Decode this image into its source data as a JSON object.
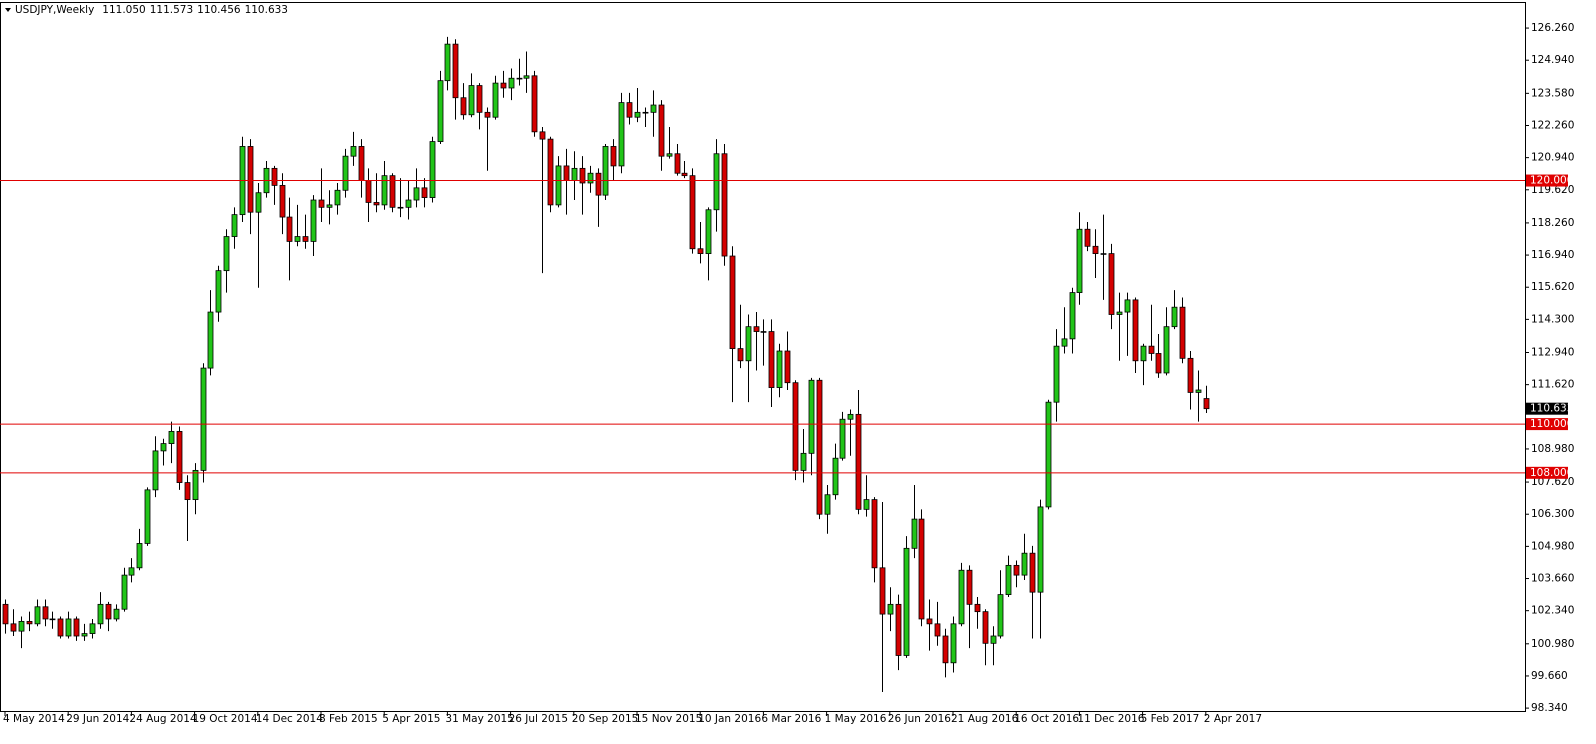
{
  "chart_data": {
    "type": "candlestick",
    "title": "USDJPY,Weekly",
    "header_values": [
      "111.050",
      "111.573",
      "110.456",
      "110.633"
    ],
    "up_color": "#21c418",
    "down_color": "#d40000",
    "categories": [
      "4 May 2014",
      null,
      null,
      null,
      null,
      null,
      null,
      null,
      "29 Jun 2014",
      null,
      null,
      null,
      null,
      null,
      null,
      null,
      "24 Aug 2014",
      null,
      null,
      null,
      null,
      null,
      null,
      null,
      "19 Oct 2014",
      null,
      null,
      null,
      null,
      null,
      null,
      null,
      "14 Dec 2014",
      null,
      null,
      null,
      null,
      null,
      null,
      null,
      "8 Feb 2015",
      null,
      null,
      null,
      null,
      null,
      null,
      null,
      "5 Apr 2015",
      null,
      null,
      null,
      null,
      null,
      null,
      null,
      "31 May 2015",
      null,
      null,
      null,
      null,
      null,
      null,
      null,
      "26 Jul 2015",
      null,
      null,
      null,
      null,
      null,
      null,
      null,
      "20 Sep 2015",
      null,
      null,
      null,
      null,
      null,
      null,
      null,
      "15 Nov 2015",
      null,
      null,
      null,
      null,
      null,
      null,
      null,
      "10 Jan 2016",
      null,
      null,
      null,
      null,
      null,
      null,
      null,
      "6 Mar 2016",
      null,
      null,
      null,
      null,
      null,
      null,
      null,
      "1 May 2016",
      null,
      null,
      null,
      null,
      null,
      null,
      null,
      "26 Jun 2016",
      null,
      null,
      null,
      null,
      null,
      null,
      null,
      "21 Aug 2016",
      null,
      null,
      null,
      null,
      null,
      null,
      null,
      "16 Oct 2016",
      null,
      null,
      null,
      null,
      null,
      null,
      null,
      "11 Dec 2016",
      null,
      null,
      null,
      null,
      null,
      null,
      null,
      "5 Feb 2017",
      null,
      null,
      null,
      null,
      null,
      null,
      null,
      "2 Apr 2017"
    ],
    "open": [
      102.6,
      101.8,
      101.5,
      101.9,
      101.8,
      102.5,
      102.0,
      102.0,
      101.3,
      102.0,
      101.3,
      101.4,
      101.8,
      102.6,
      102.0,
      102.4,
      103.8,
      104.1,
      105.1,
      107.3,
      108.9,
      109.2,
      109.7,
      107.6,
      106.9,
      108.1,
      112.3,
      114.6,
      116.3,
      117.7,
      118.6,
      121.4,
      118.7,
      119.5,
      120.5,
      119.8,
      118.5,
      117.5,
      117.7,
      117.5,
      119.2,
      118.9,
      119.0,
      119.6,
      121.0,
      121.4,
      120.0,
      119.1,
      119.0,
      120.2,
      118.9,
      118.9,
      119.2,
      119.7,
      119.3,
      121.6,
      124.1,
      125.6,
      123.4,
      122.7,
      123.9,
      122.8,
      122.6,
      124.0,
      123.8,
      124.2,
      124.2,
      124.3,
      122.0,
      121.7,
      119.0,
      120.6,
      120.0,
      120.5,
      119.9,
      120.3,
      119.4,
      121.4,
      120.6,
      123.2,
      122.6,
      122.8,
      122.8,
      123.1,
      121.0,
      121.1,
      120.3,
      120.2,
      117.2,
      117.0,
      118.8,
      121.1,
      116.9,
      113.1,
      112.6,
      114.0,
      113.8,
      113.8,
      111.5,
      113.0,
      111.7,
      108.1,
      108.8,
      111.8,
      106.3,
      107.1,
      108.6,
      110.2,
      110.4,
      106.5,
      106.9,
      104.1,
      102.2,
      102.6,
      100.5,
      104.9,
      106.1,
      102.0,
      101.8,
      101.3,
      100.2,
      101.8,
      104.0,
      102.6,
      102.3,
      101.0,
      101.3,
      103.0,
      104.2,
      103.8,
      104.7,
      103.1,
      106.6,
      110.9,
      113.2,
      113.5,
      115.4,
      118.0,
      117.3,
      117.0,
      117.0,
      114.5,
      114.6,
      115.1,
      112.6,
      113.2,
      112.9,
      112.1,
      114.0,
      114.8,
      112.7,
      111.3,
      111.05
    ],
    "high": [
      102.8,
      102.4,
      102.1,
      102.3,
      102.8,
      102.8,
      102.3,
      102.1,
      102.3,
      102.1,
      101.8,
      102.0,
      103.1,
      102.7,
      102.6,
      104.1,
      104.5,
      105.7,
      107.4,
      109.5,
      109.4,
      110.1,
      109.9,
      107.9,
      108.4,
      112.5,
      115.5,
      116.5,
      118.0,
      118.9,
      121.8,
      121.7,
      119.9,
      120.8,
      120.6,
      120.3,
      119.3,
      119.0,
      118.6,
      119.4,
      120.5,
      119.6,
      119.9,
      121.3,
      122.0,
      121.7,
      120.5,
      120.3,
      120.8,
      120.3,
      120.1,
      120.0,
      120.5,
      120.1,
      121.8,
      124.5,
      125.9,
      125.8,
      124.0,
      124.4,
      124.0,
      123.0,
      124.3,
      124.5,
      124.6,
      125.0,
      125.3,
      124.5,
      122.2,
      121.8,
      121.0,
      121.3,
      121.2,
      121.0,
      120.6,
      120.5,
      121.5,
      121.7,
      123.6,
      123.6,
      123.8,
      123.0,
      123.7,
      123.3,
      122.2,
      121.5,
      120.8,
      120.5,
      118.3,
      118.9,
      121.7,
      121.5,
      117.3,
      114.9,
      114.5,
      114.6,
      114.3,
      114.3,
      113.3,
      113.8,
      111.8,
      109.8,
      111.9,
      111.9,
      107.5,
      109.2,
      110.5,
      110.6,
      111.4,
      107.9,
      107.0,
      106.8,
      103.3,
      103.0,
      105.4,
      107.5,
      106.5,
      102.8,
      102.7,
      101.6,
      102.1,
      104.3,
      104.2,
      102.9,
      102.4,
      101.7,
      104.0,
      104.6,
      104.4,
      105.5,
      105.0,
      106.9,
      111.0,
      113.9,
      114.8,
      115.6,
      118.7,
      118.3,
      118.0,
      118.6,
      117.4,
      115.4,
      115.4,
      115.2,
      113.3,
      114.9,
      113.7,
      114.8,
      115.5,
      115.2,
      113.0,
      112.2,
      111.573
    ],
    "low": [
      101.4,
      101.3,
      100.8,
      101.5,
      101.7,
      101.7,
      101.6,
      101.2,
      101.2,
      101.1,
      101.1,
      101.2,
      101.6,
      101.5,
      101.9,
      102.3,
      103.5,
      104.0,
      105.0,
      107.0,
      108.3,
      108.4,
      107.3,
      105.2,
      106.3,
      107.6,
      112.0,
      114.2,
      115.4,
      117.2,
      118.3,
      117.8,
      115.6,
      119.3,
      119.0,
      117.8,
      115.9,
      117.3,
      117.2,
      116.9,
      118.3,
      118.2,
      118.6,
      119.3,
      120.6,
      119.3,
      118.3,
      118.7,
      118.8,
      118.7,
      118.5,
      118.4,
      118.9,
      118.9,
      119.1,
      121.5,
      123.7,
      122.5,
      122.5,
      122.6,
      122.1,
      120.4,
      122.5,
      123.4,
      123.3,
      123.9,
      123.6,
      121.8,
      116.2,
      118.7,
      118.9,
      118.6,
      119.2,
      118.6,
      119.5,
      118.1,
      119.2,
      120.0,
      120.3,
      122.3,
      122.4,
      122.2,
      121.8,
      120.4,
      120.9,
      120.2,
      120.1,
      117.0,
      116.6,
      115.9,
      117.9,
      116.5,
      110.9,
      112.3,
      110.9,
      112.2,
      112.4,
      110.7,
      111.1,
      111.4,
      107.7,
      107.6,
      107.9,
      106.1,
      105.5,
      106.9,
      108.5,
      108.7,
      106.3,
      106.2,
      103.5,
      99.0,
      101.5,
      99.9,
      100.4,
      104.5,
      101.7,
      100.7,
      100.9,
      99.6,
      99.8,
      101.7,
      100.8,
      101.6,
      100.1,
      100.1,
      101.2,
      102.9,
      103.3,
      103.6,
      101.2,
      101.2,
      106.5,
      110.1,
      112.9,
      112.9,
      114.9,
      117.1,
      116.0,
      115.1,
      113.9,
      112.6,
      112.8,
      112.1,
      111.6,
      112.6,
      111.9,
      112.0,
      113.9,
      112.5,
      110.6,
      110.1,
      110.456
    ],
    "close": [
      101.8,
      101.5,
      101.9,
      101.8,
      102.5,
      102.0,
      102.0,
      101.3,
      102.0,
      101.3,
      101.4,
      101.8,
      102.6,
      102.0,
      102.4,
      103.8,
      104.1,
      105.1,
      107.3,
      108.9,
      109.2,
      109.7,
      107.6,
      106.9,
      108.1,
      112.3,
      114.6,
      116.3,
      117.7,
      118.6,
      121.4,
      118.7,
      119.5,
      120.5,
      119.8,
      118.5,
      117.5,
      117.7,
      117.5,
      119.2,
      118.9,
      119.0,
      119.6,
      121.0,
      121.4,
      120.0,
      119.1,
      119.0,
      120.2,
      118.9,
      118.9,
      119.2,
      119.7,
      119.3,
      121.6,
      124.1,
      125.6,
      123.4,
      122.7,
      123.9,
      122.8,
      122.6,
      124.0,
      123.8,
      124.2,
      124.2,
      124.3,
      122.0,
      121.7,
      119.0,
      120.6,
      120.0,
      120.5,
      119.9,
      120.3,
      119.4,
      121.4,
      120.6,
      123.2,
      122.6,
      122.8,
      122.8,
      123.1,
      121.0,
      121.1,
      120.3,
      120.2,
      117.2,
      117.0,
      118.8,
      121.1,
      116.9,
      113.1,
      112.6,
      114.0,
      113.8,
      113.8,
      111.5,
      113.0,
      111.7,
      108.1,
      108.8,
      111.8,
      106.3,
      107.1,
      108.6,
      110.2,
      110.4,
      106.5,
      106.9,
      104.1,
      102.2,
      102.6,
      100.5,
      104.9,
      106.1,
      102.0,
      101.8,
      101.3,
      100.2,
      101.8,
      104.0,
      102.6,
      102.3,
      101.0,
      101.3,
      103.0,
      104.2,
      103.8,
      104.7,
      103.1,
      106.6,
      110.9,
      113.2,
      113.5,
      115.4,
      118.0,
      117.3,
      117.0,
      117.0,
      114.5,
      114.6,
      115.1,
      112.6,
      113.2,
      112.9,
      112.1,
      114.0,
      114.8,
      112.7,
      111.3,
      111.4,
      110.633
    ],
    "ylim": [
      98.18,
      127.33
    ],
    "yticks": [
      {
        "value": 126.26,
        "label": "126.260"
      },
      {
        "value": 124.94,
        "label": "124.940"
      },
      {
        "value": 123.58,
        "label": "123.580"
      },
      {
        "value": 122.26,
        "label": "122.260"
      },
      {
        "value": 120.94,
        "label": "120.940"
      },
      {
        "value": 119.62,
        "label": "119.620"
      },
      {
        "value": 118.26,
        "label": "118.260"
      },
      {
        "value": 116.94,
        "label": "116.940"
      },
      {
        "value": 115.62,
        "label": "115.620"
      },
      {
        "value": 114.3,
        "label": "114.300"
      },
      {
        "value": 112.94,
        "label": "112.940"
      },
      {
        "value": 111.62,
        "label": "111.620"
      },
      {
        "value": 108.98,
        "label": "108.980"
      },
      {
        "value": 107.62,
        "label": "107.620"
      },
      {
        "value": 106.3,
        "label": "106.300"
      },
      {
        "value": 104.98,
        "label": "104.980"
      },
      {
        "value": 103.66,
        "label": "103.660"
      },
      {
        "value": 102.34,
        "label": "102.340"
      },
      {
        "value": 100.98,
        "label": "100.980"
      },
      {
        "value": 99.66,
        "label": "99.660"
      },
      {
        "value": 98.34,
        "label": "98.340"
      }
    ],
    "hlines": [
      {
        "value": 120,
        "label": "120.000",
        "color": "#e00000"
      },
      {
        "value": 110,
        "label": "110.000",
        "color": "#e00000"
      },
      {
        "value": 108,
        "label": "108.000",
        "color": "#e00000"
      }
    ],
    "price_label": {
      "value": 110.633,
      "label": "110.633"
    }
  }
}
